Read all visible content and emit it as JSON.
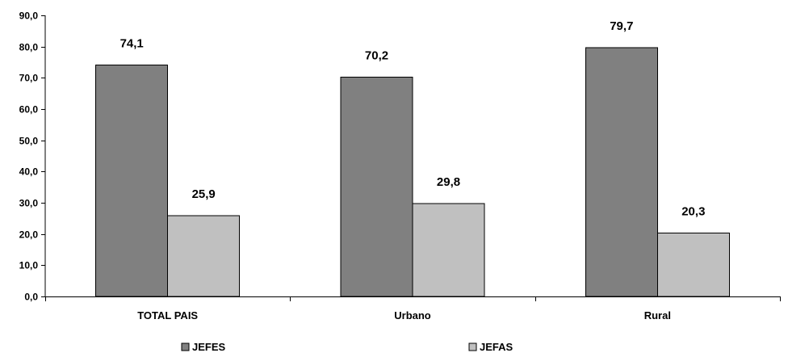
{
  "chart_data": {
    "type": "bar",
    "categories": [
      "TOTAL PAIS",
      "Urbano",
      "Rural"
    ],
    "series": [
      {
        "name": "JEFES",
        "values": [
          74.1,
          70.2,
          79.7
        ],
        "labels": [
          "74,1",
          "70,2",
          "79,7"
        ],
        "color": "#808080"
      },
      {
        "name": "JEFAS",
        "values": [
          25.9,
          29.8,
          20.3
        ],
        "labels": [
          "25,9",
          "29,8",
          "20,3"
        ],
        "color": "#c0c0c0"
      }
    ],
    "yticks": [
      "0,0",
      "10,0",
      "20,0",
      "30,0",
      "40,0",
      "50,0",
      "60,0",
      "70,0",
      "80,0",
      "90,0"
    ],
    "ylim": [
      0,
      90
    ],
    "title": "",
    "xlabel": "",
    "ylabel": "",
    "grid": false,
    "legend_position": "bottom"
  }
}
